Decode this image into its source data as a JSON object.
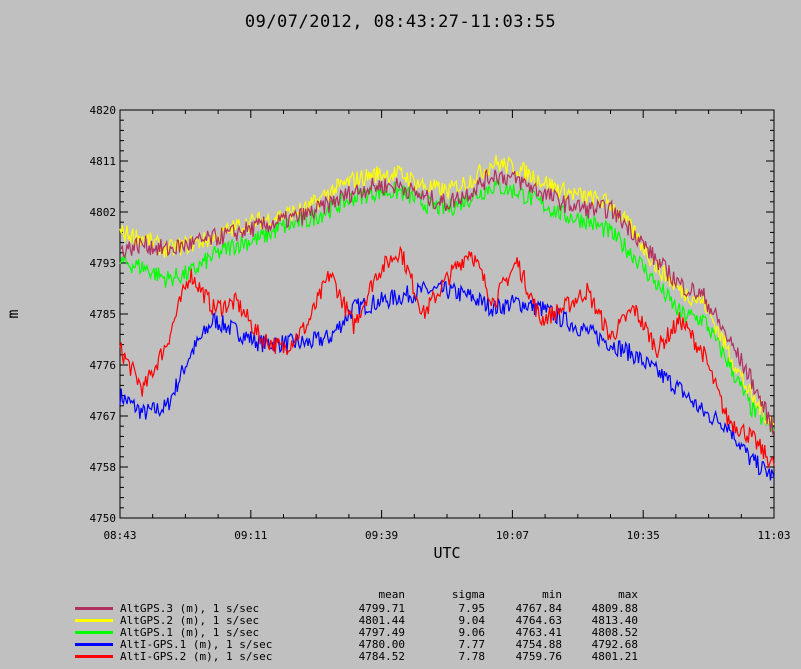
{
  "title": "09/07/2012, 08:43:27-11:03:55",
  "chart_data": {
    "type": "line",
    "xlabel": "UTC",
    "ylabel": "m",
    "ylim": [
      4750,
      4820
    ],
    "yticks": [
      "4750",
      "4758",
      "4767",
      "4776",
      "4785",
      "4793",
      "4802",
      "4811",
      "4820"
    ],
    "xlim_minutes": [
      523,
      663
    ],
    "xticks": [
      "08:43",
      "09:11",
      "09:39",
      "10:07",
      "10:35",
      "11:03"
    ],
    "grid": false,
    "legend_position": "bottom-left",
    "stats_headers": {
      "mean": "mean",
      "sigma": "sigma",
      "min": "min",
      "max": "max"
    },
    "series": [
      {
        "name": "AltGPS.3 (m), 1 s/sec",
        "color": "#b03060",
        "mean": "4799.71",
        "sigma": "7.95",
        "min": "4767.84",
        "max": "4809.88",
        "x": [
          523,
          528,
          533,
          538,
          543,
          548,
          553,
          558,
          563,
          568,
          573,
          578,
          583,
          588,
          593,
          598,
          603,
          608,
          613,
          618,
          623,
          628,
          633,
          638,
          643,
          648,
          653,
          658,
          663
        ],
        "y": [
          4796,
          4797,
          4796,
          4797,
          4798,
          4799,
          4800,
          4801,
          4802,
          4804,
          4806,
          4807,
          4807,
          4805,
          4804,
          4806,
          4809,
          4808,
          4806,
          4804,
          4803,
          4803,
          4799,
          4794,
          4790,
          4788,
          4781,
          4774,
          4765
        ]
      },
      {
        "name": "AltGPS.2 (m), 1 s/sec",
        "color": "#ffff00",
        "mean": "4801.44",
        "sigma": "9.04",
        "min": "4764.63",
        "max": "4813.40",
        "x": [
          523,
          528,
          533,
          538,
          543,
          548,
          553,
          558,
          563,
          568,
          573,
          578,
          583,
          588,
          593,
          598,
          603,
          608,
          613,
          618,
          623,
          628,
          633,
          638,
          643,
          648,
          653,
          658,
          663
        ],
        "y": [
          4799,
          4798,
          4796,
          4797,
          4798,
          4800,
          4801,
          4802,
          4803,
          4806,
          4808,
          4809,
          4809,
          4807,
          4806,
          4808,
          4811,
          4810,
          4808,
          4806,
          4805,
          4804,
          4799,
          4793,
          4789,
          4787,
          4779,
          4771,
          4766
        ]
      },
      {
        "name": "AltGPS.1 (m), 1 s/sec",
        "color": "#00ff00",
        "mean": "4797.49",
        "sigma": "9.06",
        "min": "4763.41",
        "max": "4808.52",
        "x": [
          523,
          528,
          533,
          538,
          543,
          548,
          553,
          558,
          563,
          568,
          573,
          578,
          583,
          588,
          593,
          598,
          603,
          608,
          613,
          618,
          623,
          628,
          633,
          638,
          643,
          648,
          653,
          658,
          663
        ],
        "y": [
          4794,
          4793,
          4791,
          4792,
          4795,
          4797,
          4798,
          4800,
          4801,
          4803,
          4805,
          4806,
          4806,
          4804,
          4803,
          4805,
          4807,
          4806,
          4804,
          4802,
          4801,
          4799,
          4795,
          4790,
          4785,
          4784,
          4777,
          4769,
          4765
        ]
      },
      {
        "name": "AltI-GPS.1 (m), 1 s/sec",
        "color": "#0000ff",
        "mean": "4780.00",
        "sigma": "7.77",
        "min": "4754.88",
        "max": "4792.68",
        "x": [
          523,
          528,
          533,
          538,
          543,
          548,
          553,
          558,
          563,
          568,
          573,
          578,
          583,
          588,
          593,
          598,
          603,
          608,
          613,
          618,
          623,
          628,
          633,
          638,
          643,
          648,
          653,
          658,
          663
        ],
        "y": [
          4771,
          4768,
          4769,
          4778,
          4784,
          4782,
          4780,
          4780,
          4780,
          4781,
          4786,
          4787,
          4788,
          4789,
          4789,
          4788,
          4786,
          4787,
          4786,
          4784,
          4782,
          4780,
          4778,
          4775,
          4772,
          4768,
          4766,
          4760,
          4757
        ]
      },
      {
        "name": "AltI-GPS.2 (m), 1 s/sec",
        "color": "#ff0000",
        "mean": "4784.52",
        "sigma": "7.78",
        "min": "4759.76",
        "max": "4801.21",
        "x": [
          523,
          528,
          533,
          538,
          543,
          548,
          553,
          558,
          563,
          568,
          573,
          578,
          583,
          588,
          593,
          598,
          603,
          608,
          613,
          618,
          623,
          628,
          633,
          638,
          643,
          648,
          653,
          658,
          663
        ],
        "y": [
          4779,
          4772,
          4780,
          4792,
          4786,
          4787,
          4781,
          4779,
          4783,
          4792,
          4783,
          4792,
          4796,
          4785,
          4791,
          4796,
          4787,
          4794,
          4784,
          4786,
          4789,
          4781,
          4786,
          4779,
          4784,
          4778,
          4767,
          4764,
          4759
        ]
      }
    ]
  }
}
